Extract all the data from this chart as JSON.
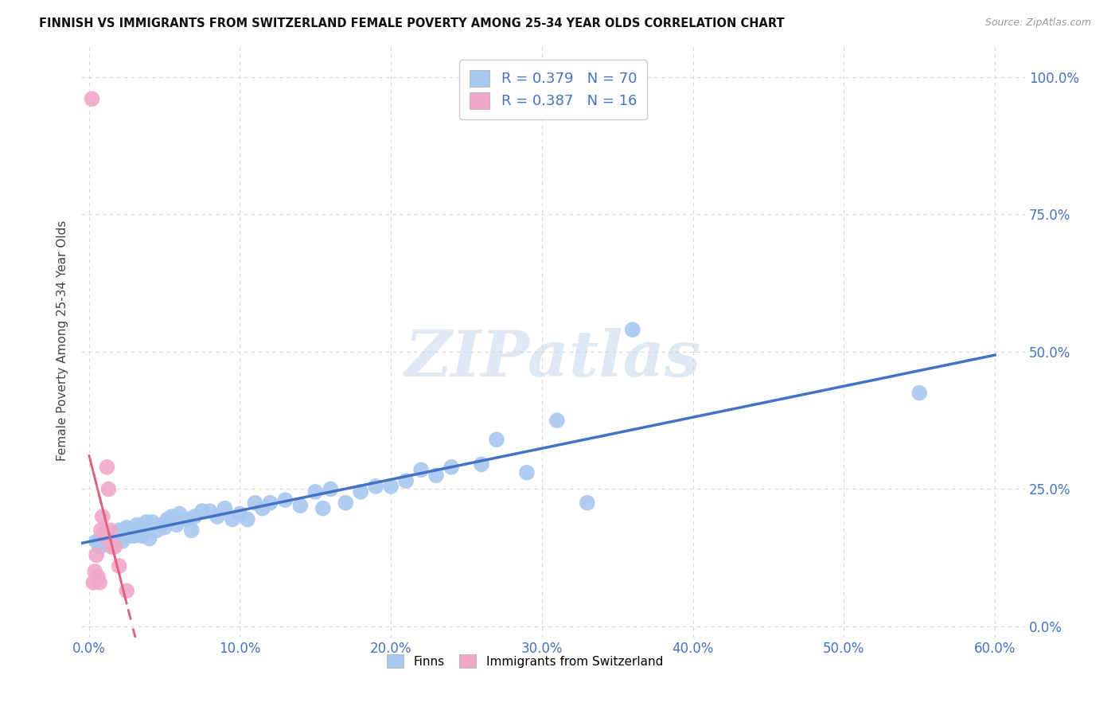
{
  "title": "FINNISH VS IMMIGRANTS FROM SWITZERLAND FEMALE POVERTY AMONG 25-34 YEAR OLDS CORRELATION CHART",
  "source": "Source: ZipAtlas.com",
  "ylabel": "Female Poverty Among 25-34 Year Olds",
  "xlim": [
    -0.005,
    0.62
  ],
  "ylim": [
    -0.02,
    1.06
  ],
  "xtick_vals": [
    0.0,
    0.1,
    0.2,
    0.3,
    0.4,
    0.5,
    0.6
  ],
  "ytick_vals": [
    0.0,
    0.25,
    0.5,
    0.75,
    1.0
  ],
  "color_finns": "#a8c8f0",
  "color_immigrants": "#f0a8c8",
  "color_line_finns": "#4472c4",
  "color_line_immigrants": "#e06080",
  "color_text": "#4472c4",
  "color_grid": "#d8d8d8",
  "watermark": "ZIPatlas",
  "finns_x": [
    0.005,
    0.007,
    0.008,
    0.01,
    0.01,
    0.012,
    0.013,
    0.015,
    0.015,
    0.017,
    0.018,
    0.02,
    0.02,
    0.022,
    0.022,
    0.023,
    0.025,
    0.025,
    0.027,
    0.028,
    0.03,
    0.03,
    0.032,
    0.033,
    0.035,
    0.035,
    0.038,
    0.04,
    0.04,
    0.042,
    0.045,
    0.048,
    0.05,
    0.052,
    0.055,
    0.058,
    0.06,
    0.065,
    0.068,
    0.07,
    0.075,
    0.08,
    0.085,
    0.09,
    0.095,
    0.1,
    0.105,
    0.11,
    0.115,
    0.12,
    0.13,
    0.14,
    0.15,
    0.155,
    0.16,
    0.17,
    0.18,
    0.19,
    0.2,
    0.21,
    0.22,
    0.23,
    0.24,
    0.26,
    0.27,
    0.29,
    0.31,
    0.33,
    0.36,
    0.55
  ],
  "finns_y": [
    0.155,
    0.145,
    0.16,
    0.17,
    0.15,
    0.155,
    0.165,
    0.165,
    0.15,
    0.17,
    0.16,
    0.165,
    0.175,
    0.17,
    0.155,
    0.175,
    0.165,
    0.18,
    0.175,
    0.165,
    0.175,
    0.165,
    0.185,
    0.17,
    0.18,
    0.165,
    0.19,
    0.18,
    0.16,
    0.19,
    0.175,
    0.185,
    0.18,
    0.195,
    0.2,
    0.185,
    0.205,
    0.195,
    0.175,
    0.2,
    0.21,
    0.21,
    0.2,
    0.215,
    0.195,
    0.205,
    0.195,
    0.225,
    0.215,
    0.225,
    0.23,
    0.22,
    0.245,
    0.215,
    0.25,
    0.225,
    0.245,
    0.255,
    0.255,
    0.265,
    0.285,
    0.275,
    0.29,
    0.295,
    0.34,
    0.28,
    0.375,
    0.225,
    0.54,
    0.425
  ],
  "imm_x": [
    0.002,
    0.003,
    0.004,
    0.005,
    0.006,
    0.007,
    0.008,
    0.009,
    0.01,
    0.012,
    0.013,
    0.014,
    0.015,
    0.017,
    0.02,
    0.025
  ],
  "imm_y": [
    0.96,
    0.08,
    0.1,
    0.13,
    0.09,
    0.08,
    0.175,
    0.2,
    0.165,
    0.29,
    0.25,
    0.175,
    0.145,
    0.145,
    0.11,
    0.065
  ],
  "imm_line_x": [
    0.0,
    0.032
  ],
  "background": "#ffffff"
}
